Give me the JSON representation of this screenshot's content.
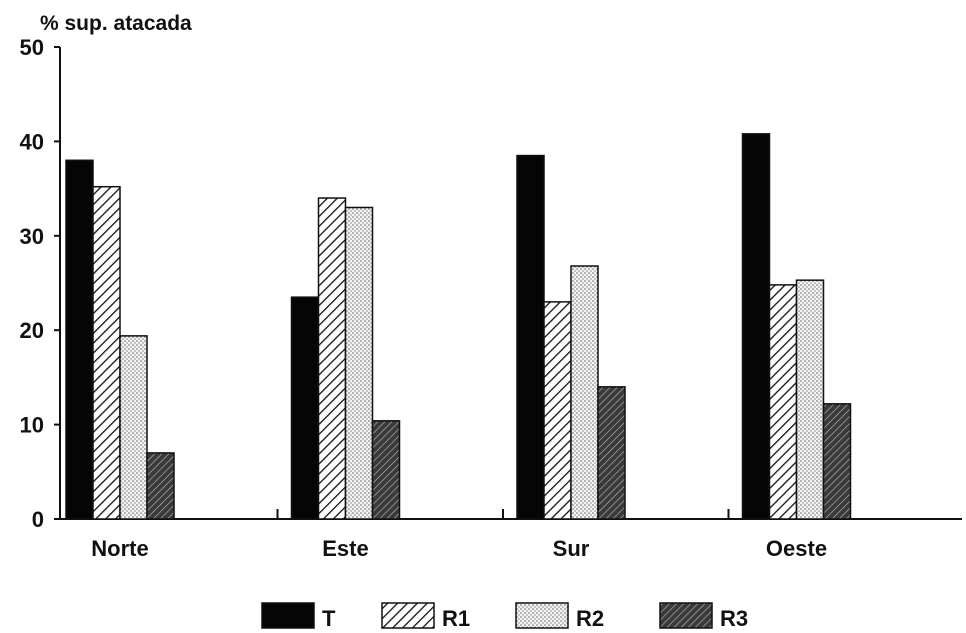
{
  "chart_data": {
    "type": "bar",
    "ylabel": "% sup. atacada",
    "xlabel": "",
    "ylim": [
      0,
      50
    ],
    "yticks": [
      0,
      10,
      20,
      30,
      40,
      50
    ],
    "categories": [
      "Norte",
      "Este",
      "Sur",
      "Oeste"
    ],
    "series": [
      {
        "name": "T",
        "values": [
          38,
          23.5,
          38.5,
          40.8
        ]
      },
      {
        "name": "R1",
        "values": [
          35.2,
          34,
          23,
          24.8
        ]
      },
      {
        "name": "R2",
        "values": [
          19.4,
          33,
          26.8,
          25.3
        ]
      },
      {
        "name": "R3",
        "values": [
          7,
          10.4,
          14,
          12.2
        ]
      }
    ],
    "legend_position": "bottom-center",
    "grid": false
  },
  "patterns": {
    "T": "solid-black",
    "R1": "diagonal-hatch",
    "R2": "light-dots",
    "R3": "dense-dark-hatch"
  }
}
